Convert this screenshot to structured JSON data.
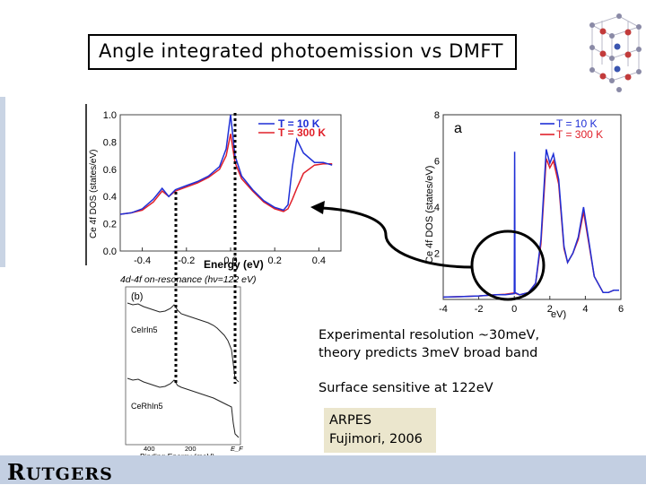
{
  "title": "Angle integrated photoemission vs DMFT",
  "notes": {
    "resolution_line1": "Experimental resolution ~30meV,",
    "resolution_line2": "theory predicts 3meV broad band",
    "surface": "Surface sensitive at 122eV"
  },
  "citation": {
    "line1": "ARPES",
    "line2": "Fujimori, 2006"
  },
  "footer": {
    "logo_big_r": "R",
    "logo_rest": "UTGERS"
  },
  "panel_top_left": {
    "ylabel": "Ce 4f DOS (states/eV)",
    "xlabel": "Energy (eV)",
    "y_ticks": [
      "0.0",
      "0.2",
      "0.4",
      "0.6",
      "0.8",
      "1.0"
    ],
    "x_ticks": [
      "-0.4",
      "-0.2",
      "0.0",
      "0.2",
      "0.4"
    ],
    "legend": [
      "T = 10 K",
      "T = 300 K"
    ]
  },
  "panel_right": {
    "label": "a",
    "ylabel": "Ce 4f DOS (states/eV)",
    "xlabel_visible": "eV)",
    "y_ticks": [
      "2",
      "4",
      "6",
      "8"
    ],
    "x_ticks": [
      "-4",
      "-2",
      "0",
      "2",
      "4",
      "6"
    ],
    "legend": [
      "T = 10 K",
      "T = 300 K"
    ]
  },
  "panel_bottom": {
    "header": "4d-4f on-resonance (hν=122 eV)",
    "label": "(b)",
    "sample1": "CeIrIn5",
    "sample2": "CeRhIn5",
    "xlabel": "Binding Energy (meV)",
    "x_ticks": [
      "400",
      "200",
      "E_F"
    ]
  },
  "colors": {
    "blue": "#1f2fd6",
    "red": "#e0202a",
    "arrow": "#000000",
    "citation_bg": "#ebe6cd",
    "footer_bg": "#c3cfe2"
  },
  "chart_data": [
    {
      "type": "line",
      "xlabel": "Energy (eV)",
      "ylabel": "Ce 4f DOS (states/eV)",
      "xlim": [
        -0.5,
        0.5
      ],
      "ylim": [
        0,
        1.0
      ],
      "series": [
        {
          "name": "T = 10 K",
          "x": [
            -0.5,
            -0.45,
            -0.4,
            -0.35,
            -0.31,
            -0.28,
            -0.25,
            -0.2,
            -0.15,
            -0.1,
            -0.05,
            -0.02,
            0.0,
            0.02,
            0.05,
            0.1,
            0.15,
            0.2,
            0.24,
            0.26,
            0.28,
            0.3,
            0.33,
            0.38,
            0.42,
            0.46
          ],
          "values": [
            0.27,
            0.28,
            0.31,
            0.38,
            0.46,
            0.4,
            0.45,
            0.48,
            0.51,
            0.55,
            0.62,
            0.75,
            1.0,
            0.7,
            0.55,
            0.45,
            0.37,
            0.32,
            0.3,
            0.34,
            0.62,
            0.82,
            0.72,
            0.65,
            0.65,
            0.63
          ]
        },
        {
          "name": "T = 300 K",
          "x": [
            -0.5,
            -0.45,
            -0.4,
            -0.35,
            -0.31,
            -0.28,
            -0.25,
            -0.2,
            -0.15,
            -0.1,
            -0.05,
            -0.02,
            0.0,
            0.02,
            0.05,
            0.1,
            0.15,
            0.2,
            0.24,
            0.26,
            0.28,
            0.3,
            0.33,
            0.38,
            0.42,
            0.46
          ],
          "values": [
            0.27,
            0.28,
            0.3,
            0.36,
            0.44,
            0.4,
            0.44,
            0.47,
            0.5,
            0.54,
            0.6,
            0.7,
            0.86,
            0.65,
            0.53,
            0.44,
            0.36,
            0.31,
            0.29,
            0.31,
            0.38,
            0.46,
            0.57,
            0.63,
            0.64,
            0.64
          ]
        }
      ]
    },
    {
      "type": "line",
      "ylabel": "Ce 4f DOS (states/eV)",
      "xlim": [
        -4,
        6
      ],
      "ylim": [
        0,
        8
      ],
      "series": [
        {
          "name": "T = 10 K",
          "x": [
            -4,
            -3,
            -2,
            -1,
            -0.5,
            0,
            0.02,
            0.04,
            0.3,
            0.8,
            1.2,
            1.5,
            1.8,
            2.0,
            2.2,
            2.5,
            2.8,
            3.0,
            3.3,
            3.6,
            3.9,
            4.2,
            4.5,
            5.0,
            5.3,
            5.6,
            5.9
          ],
          "values": [
            0.1,
            0.12,
            0.15,
            0.2,
            0.2,
            0.25,
            6.4,
            0.3,
            0.2,
            0.3,
            0.7,
            2.6,
            6.5,
            5.9,
            6.3,
            5.2,
            2.3,
            1.6,
            2.0,
            2.7,
            4.0,
            2.5,
            1.0,
            0.3,
            0.3,
            0.4,
            0.4
          ]
        },
        {
          "name": "T = 300 K",
          "x": [
            -4,
            -3,
            -2,
            -1,
            -0.5,
            0,
            0.3,
            0.8,
            1.2,
            1.5,
            1.8,
            2.0,
            2.2,
            2.5,
            2.8,
            3.0,
            3.3,
            3.6,
            3.9,
            4.2,
            4.5,
            5.0,
            5.3,
            5.6,
            5.9
          ],
          "values": [
            0.1,
            0.12,
            0.15,
            0.2,
            0.22,
            0.28,
            0.2,
            0.3,
            0.7,
            2.4,
            6.1,
            5.7,
            6.0,
            5.0,
            2.2,
            1.6,
            2.0,
            2.6,
            3.8,
            2.4,
            1.0,
            0.3,
            0.3,
            0.4,
            0.4
          ]
        }
      ]
    }
  ]
}
